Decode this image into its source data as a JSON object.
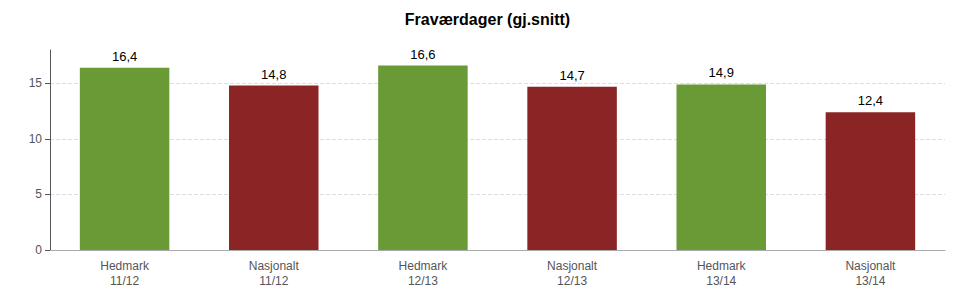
{
  "chart_data": {
    "type": "bar",
    "title": "Fraværdager (gj.snitt)",
    "categories": [
      "Hedmark\n11/12",
      "Nasjonalt\n11/12",
      "Hedmark\n12/13",
      "Nasjonalt\n12/13",
      "Hedmark\n13/14",
      "Nasjonalt\n13/14"
    ],
    "values": [
      16.4,
      14.8,
      16.6,
      14.7,
      14.9,
      12.4
    ],
    "value_labels": [
      "16,4",
      "14,8",
      "16,6",
      "14,7",
      "14,9",
      "12,4"
    ],
    "colors": [
      "#6a9a35",
      "#8b2525",
      "#6a9a35",
      "#8b2525",
      "#6a9a35",
      "#8b2525"
    ],
    "ylim": [
      0,
      18
    ],
    "yticks": [
      0,
      5,
      10,
      15
    ],
    "grid": true,
    "data_labels": true
  }
}
